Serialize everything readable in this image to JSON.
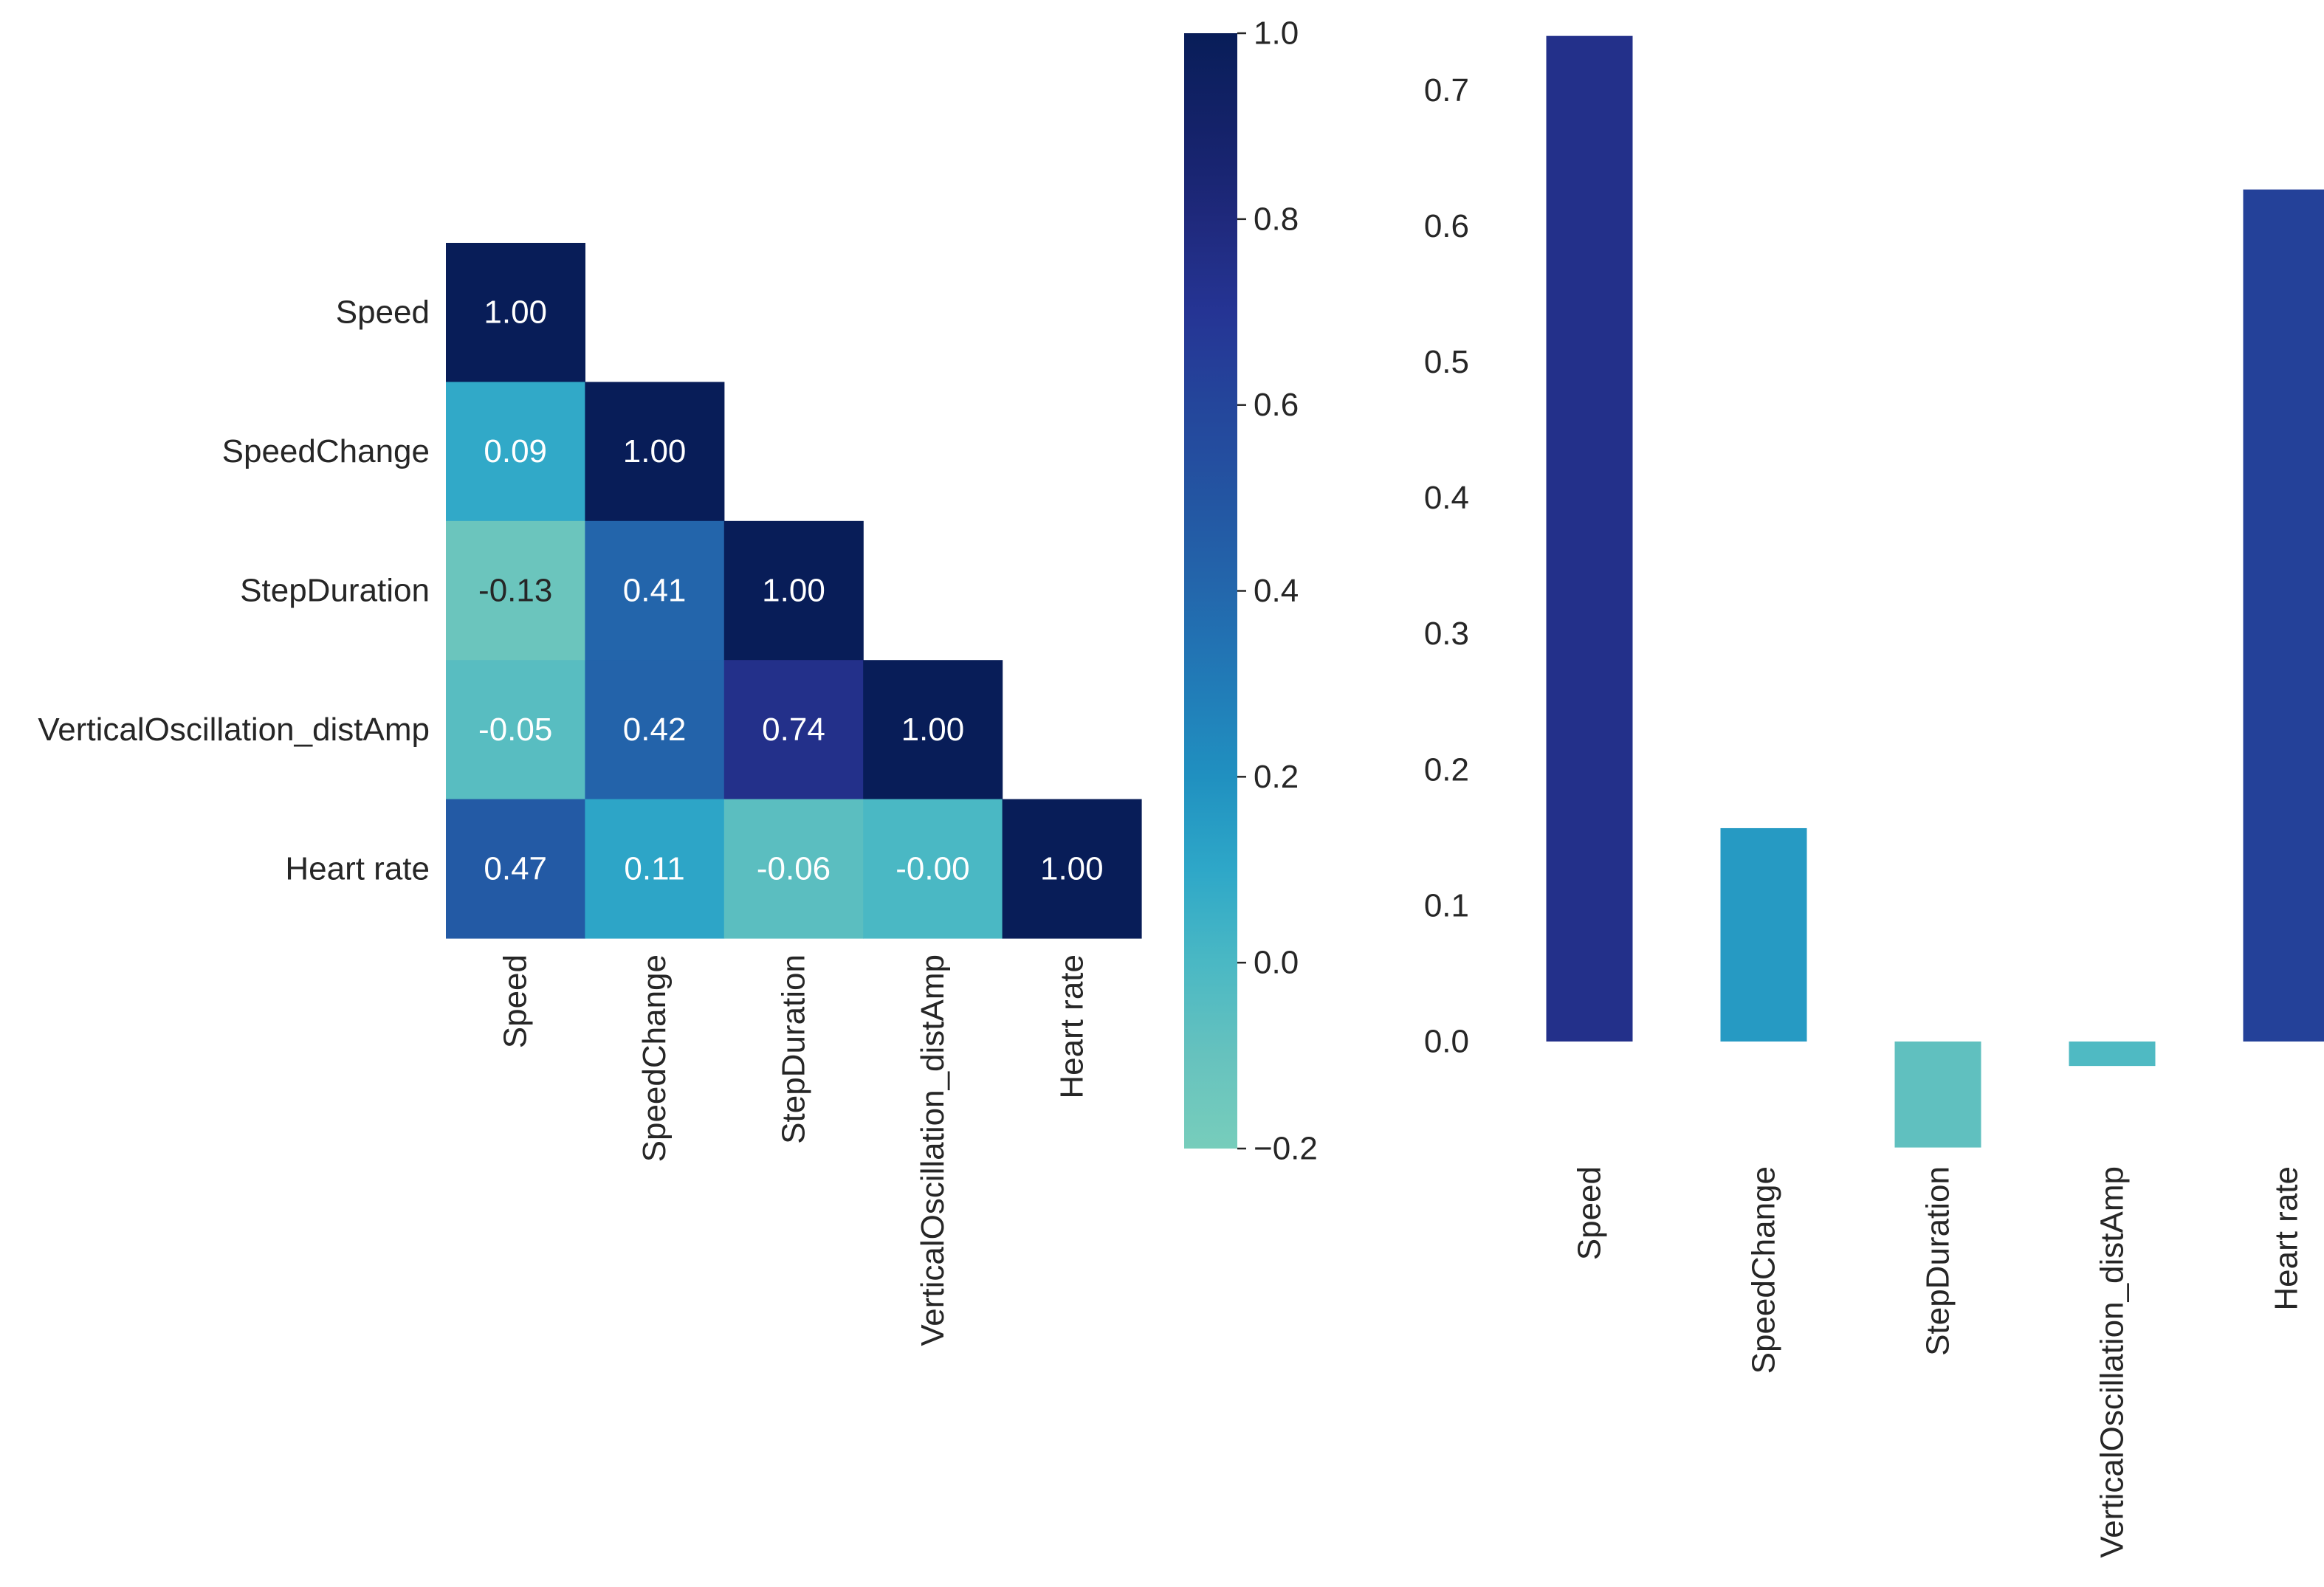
{
  "chart_data": [
    {
      "type": "heatmap",
      "labels": [
        "Speed",
        "SpeedChange",
        "StepDuration",
        "VerticalOscillation_distAmp",
        "Heart rate"
      ],
      "matrix": [
        [
          1.0,
          null,
          null,
          null,
          null
        ],
        [
          0.09,
          1.0,
          null,
          null,
          null
        ],
        [
          -0.13,
          0.41,
          1.0,
          null,
          null
        ],
        [
          -0.05,
          0.42,
          0.74,
          1.0,
          null
        ],
        [
          0.47,
          0.11,
          -0.06,
          -0.0,
          1.0
        ]
      ],
      "annotations": [
        [
          "1.00",
          "",
          "",
          "",
          ""
        ],
        [
          "0.09",
          "1.00",
          "",
          "",
          ""
        ],
        [
          "-0.13",
          "0.41",
          "1.00",
          "",
          ""
        ],
        [
          "-0.05",
          "0.42",
          "0.74",
          "1.00",
          ""
        ],
        [
          "0.47",
          "0.11",
          "-0.06",
          "-0.00",
          "1.00"
        ]
      ],
      "mask": "upper-triangle",
      "colormap": "YlGnBu",
      "colorbar": {
        "range": [
          -0.2,
          1.0
        ],
        "ticks": [
          -0.2,
          0.0,
          0.2,
          0.4,
          0.6,
          0.8,
          1.0
        ],
        "tick_labels": [
          "−0.2",
          "0.0",
          "0.2",
          "0.4",
          "0.6",
          "0.8",
          "1.0"
        ]
      },
      "title": "",
      "xlabel": "",
      "ylabel": ""
    },
    {
      "type": "bar",
      "categories": [
        "Speed",
        "SpeedChange",
        "StepDuration",
        "VerticalOscillation_distAmp",
        "Heart rate"
      ],
      "values": [
        0.74,
        0.157,
        -0.078,
        -0.018,
        0.627
      ],
      "ylim": [
        -0.078,
        0.74
      ],
      "yticks": [
        0.0,
        0.1,
        0.2,
        0.3,
        0.4,
        0.5,
        0.6,
        0.7
      ],
      "ytick_labels": [
        "0.0",
        "0.1",
        "0.2",
        "0.3",
        "0.4",
        "0.5",
        "0.6",
        "0.7"
      ],
      "color_scale": "YlGnBu, range -0.2 to 1.0",
      "grid": false,
      "title": "",
      "xlabel": "",
      "ylabel": ""
    }
  ]
}
